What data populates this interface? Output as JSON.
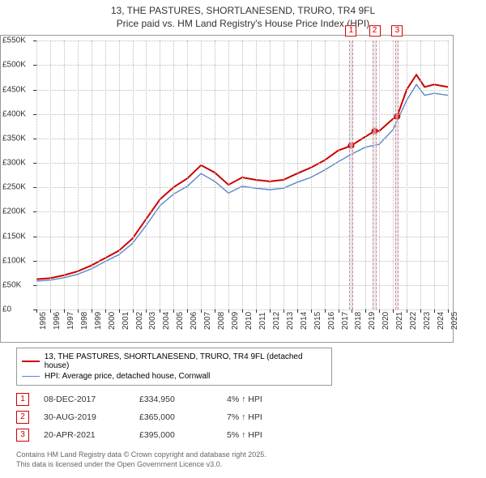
{
  "title": {
    "line1": "13, THE PASTURES, SHORTLANESEND, TRURO, TR4 9FL",
    "line2": "Price paid vs. HM Land Registry's House Price Index (HPI)"
  },
  "chart": {
    "type": "line",
    "background_color": "#ffffff",
    "grid_color": "#bbbbbb",
    "border_color": "#999999",
    "x": {
      "min": 1995,
      "max": 2025,
      "tick_step": 1,
      "label_fontsize": 10
    },
    "y": {
      "min": 0,
      "max": 550000,
      "tick_step": 50000,
      "label_prefix": "£",
      "label_suffix": "K",
      "label_divisor": 1000,
      "label_fontsize": 10
    },
    "series": [
      {
        "id": "price_paid",
        "label": "13, THE PASTURES, SHORTLANESEND, TRURO, TR4 9FL (detached house)",
        "color": "#cc0000",
        "width": 2,
        "points": [
          [
            1995,
            62000
          ],
          [
            1996,
            64000
          ],
          [
            1997,
            70000
          ],
          [
            1998,
            78000
          ],
          [
            1999,
            90000
          ],
          [
            2000,
            105000
          ],
          [
            2001,
            120000
          ],
          [
            2002,
            145000
          ],
          [
            2003,
            185000
          ],
          [
            2004,
            225000
          ],
          [
            2005,
            250000
          ],
          [
            2006,
            268000
          ],
          [
            2007,
            295000
          ],
          [
            2008,
            280000
          ],
          [
            2009,
            255000
          ],
          [
            2010,
            270000
          ],
          [
            2011,
            265000
          ],
          [
            2012,
            262000
          ],
          [
            2013,
            265000
          ],
          [
            2014,
            278000
          ],
          [
            2015,
            290000
          ],
          [
            2016,
            305000
          ],
          [
            2017,
            325000
          ],
          [
            2017.94,
            334950
          ],
          [
            2018.5,
            345000
          ],
          [
            2019.66,
            365000
          ],
          [
            2020,
            365000
          ],
          [
            2021,
            390000
          ],
          [
            2021.3,
            395000
          ],
          [
            2022,
            450000
          ],
          [
            2022.7,
            480000
          ],
          [
            2023.3,
            455000
          ],
          [
            2024,
            460000
          ],
          [
            2025,
            455000
          ]
        ]
      },
      {
        "id": "hpi",
        "label": "HPI: Average price, detached house, Cornwall",
        "color": "#5b87c7",
        "width": 1.4,
        "points": [
          [
            1995,
            58000
          ],
          [
            1996,
            60000
          ],
          [
            1997,
            65000
          ],
          [
            1998,
            72000
          ],
          [
            1999,
            83000
          ],
          [
            2000,
            98000
          ],
          [
            2001,
            112000
          ],
          [
            2002,
            135000
          ],
          [
            2003,
            172000
          ],
          [
            2004,
            212000
          ],
          [
            2005,
            236000
          ],
          [
            2006,
            252000
          ],
          [
            2007,
            278000
          ],
          [
            2008,
            262000
          ],
          [
            2009,
            238000
          ],
          [
            2010,
            252000
          ],
          [
            2011,
            248000
          ],
          [
            2012,
            245000
          ],
          [
            2013,
            248000
          ],
          [
            2014,
            260000
          ],
          [
            2015,
            270000
          ],
          [
            2016,
            285000
          ],
          [
            2017,
            302000
          ],
          [
            2018,
            318000
          ],
          [
            2019,
            332000
          ],
          [
            2020,
            338000
          ],
          [
            2021,
            368000
          ],
          [
            2022,
            428000
          ],
          [
            2022.7,
            460000
          ],
          [
            2023.3,
            438000
          ],
          [
            2024,
            442000
          ],
          [
            2025,
            438000
          ]
        ]
      }
    ],
    "sale_markers": [
      {
        "idx": "1",
        "x": 2017.94,
        "y": 334950,
        "band_width_years": 0.25
      },
      {
        "idx": "2",
        "x": 2019.66,
        "y": 365000,
        "band_width_years": 0.25
      },
      {
        "idx": "3",
        "x": 2021.3,
        "y": 395000,
        "band_width_years": 0.25
      }
    ],
    "marker_color": "#cc0000",
    "band_fill": "#d6e0ec",
    "band_border": "#cc3333"
  },
  "legend": {
    "items": [
      {
        "color": "#cc0000",
        "width": 2,
        "text": "13, THE PASTURES, SHORTLANESEND, TRURO, TR4 9FL (detached house)"
      },
      {
        "color": "#5b87c7",
        "width": 1.4,
        "text": "HPI: Average price, detached house, Cornwall"
      }
    ]
  },
  "sales": [
    {
      "idx": "1",
      "date": "08-DEC-2017",
      "price": "£334,950",
      "pct": "4% ↑ HPI"
    },
    {
      "idx": "2",
      "date": "30-AUG-2019",
      "price": "£365,000",
      "pct": "7% ↑ HPI"
    },
    {
      "idx": "3",
      "date": "20-APR-2021",
      "price": "£395,000",
      "pct": "5% ↑ HPI"
    }
  ],
  "footer": {
    "line1": "Contains HM Land Registry data © Crown copyright and database right 2025.",
    "line2": "This data is licensed under the Open Government Licence v3.0."
  }
}
